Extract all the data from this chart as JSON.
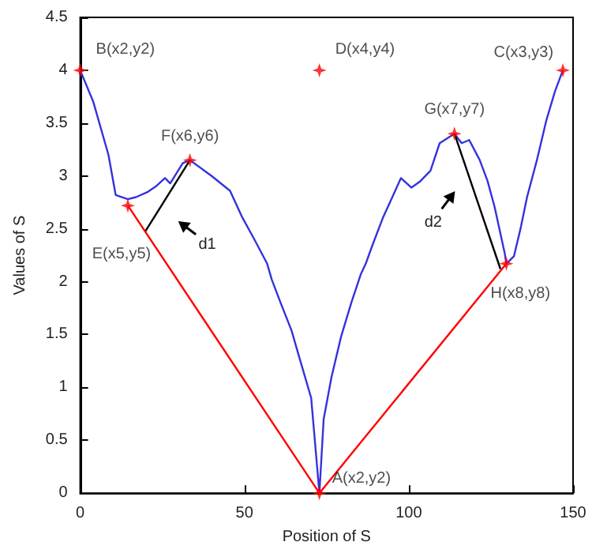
{
  "chart_data": {
    "type": "line",
    "xlabel": "Position of S",
    "ylabel": "Values of S",
    "xlim": [
      0,
      150
    ],
    "xticks": [
      0,
      50,
      100,
      150
    ],
    "ylim": [
      0,
      4.5
    ],
    "yticks": [
      0,
      0.5,
      1,
      1.5,
      2,
      2.5,
      3,
      3.5,
      4,
      4.5
    ],
    "grid": false,
    "series": [
      {
        "color": "#3333dd",
        "marker": "none",
        "x": [
          0,
          4,
          8.6,
          10.8,
          14.5,
          17,
          20.6,
          23,
          25.8,
          27.4,
          31.2,
          33.4,
          40,
          45.6,
          49.3,
          53,
          56.9,
          58.3,
          61,
          64.3,
          67,
          70.3,
          72.6,
          72.8,
          74.1,
          76.5,
          79.4,
          82.5,
          85.4,
          86.9,
          89,
          92.2,
          95,
          97.6,
          100.8,
          103.5,
          106.6,
          109.4,
          113.9,
          116.1,
          118.4,
          121.6,
          124,
          126.1,
          129.2,
          129.7,
          132,
          134,
          136,
          139,
          141.9,
          144.5,
          146.9
        ],
        "values": [
          4.0,
          3.7,
          3.2,
          2.82,
          2.78,
          2.8,
          2.85,
          2.9,
          2.98,
          2.93,
          3.12,
          3.15,
          3.0,
          2.86,
          2.61,
          2.4,
          2.17,
          2.02,
          1.8,
          1.54,
          1.25,
          0.9,
          0.07,
          0,
          0.7,
          1.1,
          1.48,
          1.8,
          2.07,
          2.17,
          2.35,
          2.61,
          2.8,
          2.98,
          2.89,
          2.95,
          3.05,
          3.31,
          3.4,
          3.31,
          3.34,
          3.15,
          2.95,
          2.71,
          2.27,
          2.17,
          2.24,
          2.5,
          2.8,
          3.15,
          3.53,
          3.8,
          4.0
        ]
      },
      {
        "color": "#ff0000",
        "marker": "none",
        "x": [
          14.5,
          72.8,
          129.7
        ],
        "values": [
          2.72,
          0,
          2.17
        ]
      },
      {
        "color": "#000000",
        "marker": "none",
        "x": [
          33.4,
          19.9
        ],
        "values": [
          3.15,
          2.48
        ]
      },
      {
        "color": "#000000",
        "marker": "none",
        "x": [
          113.9,
          127.9
        ],
        "values": [
          3.4,
          2.12
        ]
      },
      {
        "type": "scatter",
        "color": "#ff0000",
        "marker": "star",
        "x": [
          0,
          14.5,
          33.4,
          72.8,
          113.9,
          129.7,
          146.9,
          72.8
        ],
        "values": [
          4.0,
          2.72,
          3.15,
          0,
          3.4,
          2.17,
          4.0,
          4.0
        ]
      }
    ],
    "annotations": [
      {
        "text": "B(x2,y2)",
        "x": 0,
        "y": 4.0
      },
      {
        "text": "E(x5,y5)",
        "x": 14.5,
        "y": 2.72
      },
      {
        "text": "F(x6,y6)",
        "x": 33.4,
        "y": 3.15
      },
      {
        "text": "A(x2,y2)",
        "x": 72.8,
        "y": 0
      },
      {
        "text": "G(x7,y7)",
        "x": 113.9,
        "y": 3.4
      },
      {
        "text": "H(x8,y8)",
        "x": 129.7,
        "y": 2.17
      },
      {
        "text": "C(x3,y3)",
        "x": 146.9,
        "y": 4.0
      },
      {
        "text": "D(x4,y4)",
        "x": 72.8,
        "y": 4.0
      },
      "d1",
      "d2"
    ]
  }
}
